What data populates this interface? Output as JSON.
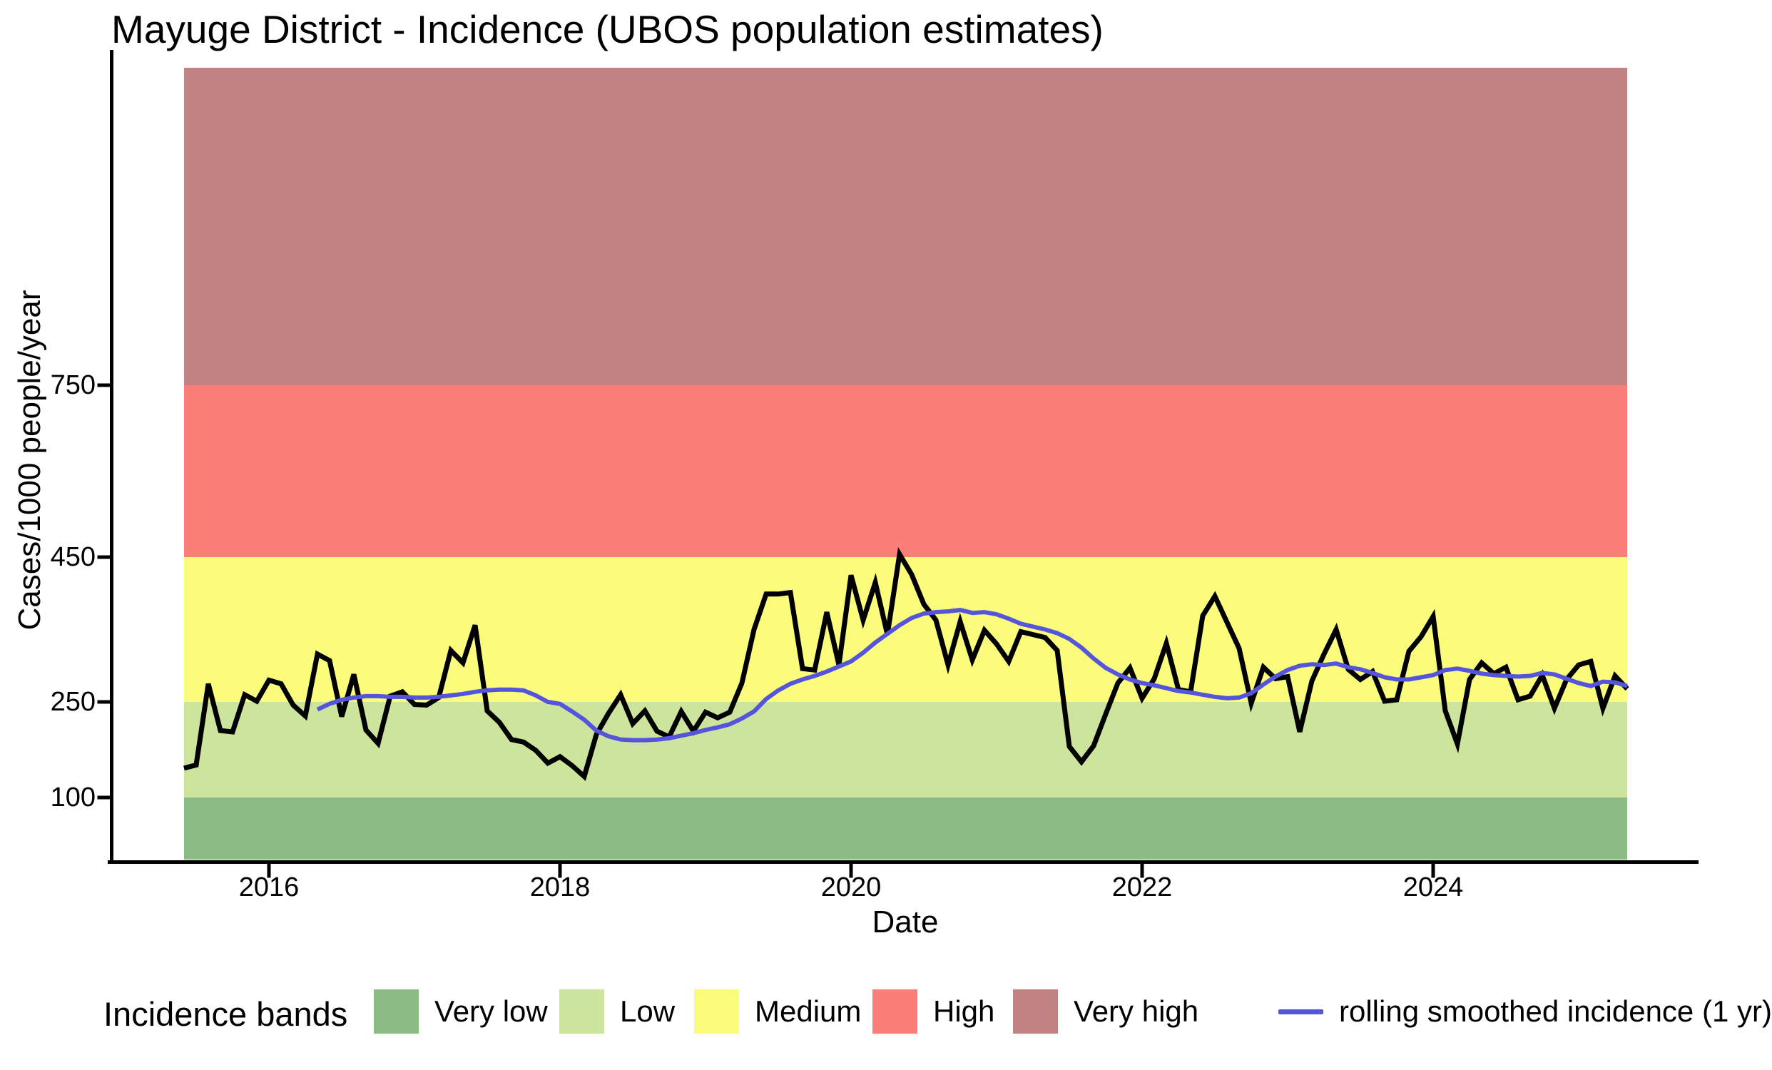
{
  "title": "Mayuge District - Incidence (UBOS population estimates)",
  "axes": {
    "x": {
      "label": "Date",
      "ticks": [
        {
          "value": 2016,
          "label": "2016"
        },
        {
          "value": 2018,
          "label": "2018"
        },
        {
          "value": 2020,
          "label": "2020"
        },
        {
          "value": 2022,
          "label": "2022"
        },
        {
          "value": 2024,
          "label": "2024"
        }
      ]
    },
    "y": {
      "label": "Cases/1000 people/year",
      "ticks": [
        {
          "value": 100,
          "label": "100"
        },
        {
          "value": 250,
          "label": "250"
        },
        {
          "value": 450,
          "label": "450"
        },
        {
          "value": 750,
          "label": "750"
        }
      ]
    }
  },
  "legend": {
    "title": "Incidence bands",
    "line_label": "rolling smoothed incidence (1 yr)"
  },
  "colors": {
    "background": "#ffffff",
    "axis": "#000000",
    "raw_line": "#000000",
    "smoothed_line": "#5454DC"
  },
  "chart_data": {
    "type": "line",
    "title": "Mayuge District - Incidence (UBOS population estimates)",
    "xlabel": "Date",
    "ylabel": "Cases/1000 people/year",
    "x_start_month": "2015-06",
    "x_frequency": "monthly",
    "x_points": 120,
    "x_tick_years": [
      2016,
      2018,
      2020,
      2022,
      2024
    ],
    "y_ticks": [
      100,
      250,
      450,
      750
    ],
    "y_scale_note": "non-linear band-compressed scale",
    "grid": false,
    "legend_position": "bottom",
    "bands": [
      {
        "name": "very_low",
        "label": "Very low",
        "color": "#8CBC86",
        "from": 0,
        "to": 100
      },
      {
        "name": "low",
        "label": "Low",
        "color": "#CCE49B",
        "from": 100,
        "to": 250
      },
      {
        "name": "medium",
        "label": "Medium",
        "color": "#FBFC7B",
        "from": 250,
        "to": 450
      },
      {
        "name": "high",
        "label": "High",
        "color": "#FC7E78",
        "from": 450,
        "to": 750
      },
      {
        "name": "very_high",
        "label": "Very high",
        "color": "#C18282",
        "from": 750,
        "to": null
      }
    ],
    "series": [
      {
        "name": "incidence",
        "color": "#000000",
        "values": [
          146,
          151,
          275,
          205,
          203,
          260,
          251,
          280,
          275,
          245,
          228,
          316,
          307,
          227,
          288,
          206,
          185,
          258,
          264,
          246,
          245,
          256,
          321,
          304,
          356,
          236,
          218,
          191,
          187,
          174,
          154,
          164,
          150,
          133,
          199,
          232,
          260,
          216,
          236,
          204,
          195,
          235,
          204,
          234,
          225,
          234,
          276,
          350,
          399,
          399,
          401,
          296,
          294,
          374,
          301,
          425,
          363,
          415,
          343,
          455,
          426,
          385,
          363,
          301,
          361,
          308,
          349,
          330,
          306,
          347,
          343,
          339,
          321,
          180,
          156,
          181,
          231,
          276,
          297,
          255,
          282,
          331,
          267,
          264,
          369,
          396,
          360,
          324,
          248,
          298,
          282,
          285,
          203,
          279,
          316,
          350,
          295,
          281,
          292,
          251,
          253,
          320,
          340,
          368,
          236,
          184,
          281,
          304,
          289,
          298,
          253,
          258,
          287,
          240,
          281,
          301,
          306,
          240,
          286,
          268
        ]
      },
      {
        "name": "rolling smoothed incidence (1 yr)",
        "color": "#5454DC",
        "values": [
          null,
          null,
          null,
          null,
          null,
          null,
          null,
          null,
          null,
          null,
          null,
          238,
          247,
          253,
          256,
          258,
          258,
          257,
          257,
          256,
          256,
          257,
          259,
          261,
          264,
          266,
          267,
          267,
          266,
          259,
          250,
          247,
          235,
          222,
          205,
          196,
          191,
          190,
          190,
          191,
          193,
          197,
          201,
          206,
          210,
          215,
          224,
          235,
          254,
          266,
          275,
          281,
          286,
          292,
          299,
          306,
          318,
          332,
          344,
          356,
          366,
          372,
          374,
          375,
          377,
          373,
          374,
          371,
          365,
          358,
          354,
          350,
          345,
          337,
          325,
          310,
          297,
          288,
          281,
          276,
          273,
          269,
          265,
          263,
          260,
          257,
          255,
          256,
          262,
          274,
          285,
          294,
          300,
          302,
          301,
          303,
          298,
          295,
          290,
          284,
          281,
          281,
          284,
          287,
          294,
          296,
          293,
          289,
          287,
          286,
          285,
          286,
          290,
          288,
          282,
          276,
          272,
          278,
          277,
          272
        ]
      }
    ]
  }
}
